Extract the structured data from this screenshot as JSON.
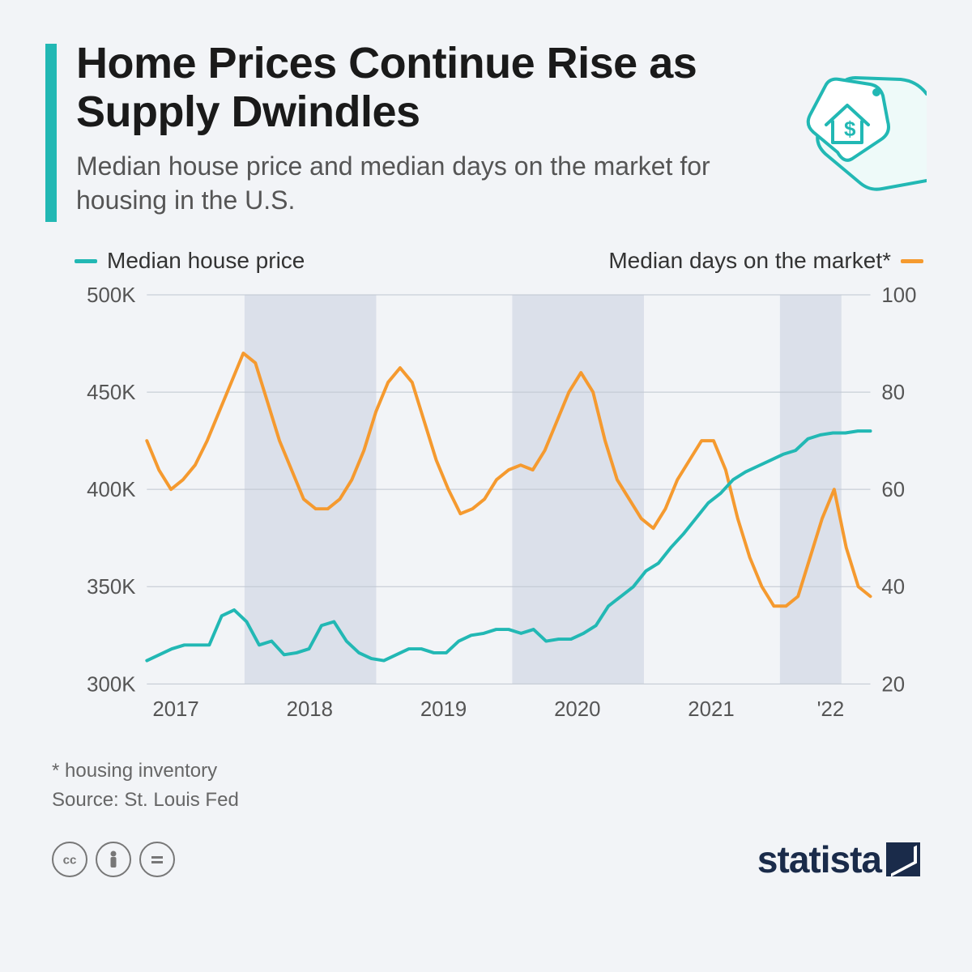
{
  "header": {
    "title": "Home Prices Continue Rise as Supply Dwindles",
    "subtitle": "Median house price and median days on the market for housing in the U.S."
  },
  "legend": {
    "left_label": "Median house price",
    "right_label": "Median days on the market*"
  },
  "chart": {
    "type": "dual-axis-line",
    "background_color": "#f2f4f7",
    "shaded_band_color": "#dbe0ea",
    "grid_color": "#bfc6d0",
    "axis_text_color": "#555",
    "axis_fontsize": 26,
    "line_width": 4,
    "series1": {
      "name": "Median house price",
      "color": "#22b8b4",
      "axis": "left",
      "values": [
        312,
        315,
        318,
        320,
        320,
        320,
        335,
        338,
        332,
        320,
        322,
        315,
        316,
        318,
        330,
        332,
        322,
        316,
        313,
        312,
        315,
        318,
        318,
        316,
        316,
        322,
        325,
        326,
        328,
        328,
        326,
        328,
        322,
        323,
        323,
        326,
        330,
        340,
        345,
        350,
        358,
        362,
        370,
        377,
        385,
        393,
        398,
        405,
        409,
        412,
        415,
        418,
        420,
        426,
        428,
        429,
        429,
        430,
        430
      ]
    },
    "series2": {
      "name": "Median days on the market",
      "color": "#f59a2f",
      "axis": "right",
      "values": [
        70,
        64,
        60,
        62,
        65,
        70,
        76,
        82,
        88,
        86,
        78,
        70,
        64,
        58,
        56,
        56,
        58,
        62,
        68,
        76,
        82,
        85,
        82,
        74,
        66,
        60,
        55,
        56,
        58,
        62,
        64,
        65,
        64,
        68,
        74,
        80,
        84,
        80,
        70,
        62,
        58,
        54,
        52,
        56,
        62,
        66,
        70,
        70,
        64,
        54,
        46,
        40,
        36,
        36,
        38,
        46,
        54,
        60,
        48,
        40,
        38
      ]
    },
    "left_axis": {
      "min": 300,
      "max": 500,
      "ticks": [
        300,
        350,
        400,
        450,
        500
      ],
      "tick_labels": [
        "300K",
        "350K",
        "400K",
        "450K",
        "500K"
      ]
    },
    "right_axis": {
      "min": 20,
      "max": 100,
      "ticks": [
        20,
        40,
        60,
        80,
        100
      ],
      "tick_labels": [
        "20",
        "40",
        "60",
        "80",
        "100"
      ]
    },
    "x_axis": {
      "year_positions": [
        0.04,
        0.225,
        0.41,
        0.595,
        0.78,
        0.945
      ],
      "year_labels": [
        "2017",
        "2018",
        "2019",
        "2020",
        "2021",
        "'22"
      ],
      "shaded_bands": [
        [
          0.135,
          0.317
        ],
        [
          0.505,
          0.687
        ],
        [
          0.875,
          0.96
        ]
      ]
    }
  },
  "footnote": {
    "line1": "* housing inventory",
    "line2": "Source: St. Louis Fed"
  },
  "footer": {
    "brand": "statista"
  },
  "colors": {
    "accent": "#22b8b4",
    "orange": "#f59a2f",
    "page_bg": "#f2f4f7",
    "title_color": "#1a1a1a",
    "subtitle_color": "#555"
  }
}
